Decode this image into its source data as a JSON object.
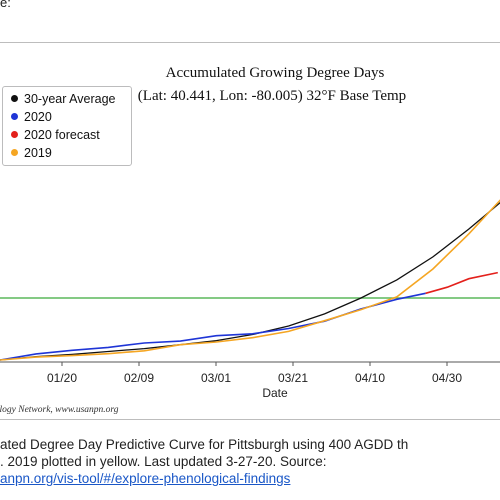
{
  "page": {
    "top_fragment": "e:",
    "caption_lines": [
      "ated Degree Day Predictive Curve for Pittsburgh using 400 AGDD th",
      ". 2019 plotted in yellow. Last updated 3-27-20. Source:"
    ],
    "caption_link": "anpn.org/vis-tool/#/explore-phenological-findings"
  },
  "chart_data": {
    "type": "line",
    "title": "Accumulated Growing Degree Days",
    "subtitle": "(Lat: 40.441, Lon: -80.005) 32°F Base Temp",
    "xlabel": "Date",
    "ylabel": "",
    "x_ticks": [
      "01/20",
      "02/09",
      "03/01",
      "03/21",
      "04/10",
      "04/30"
    ],
    "threshold_line": {
      "color": "#5cb85c"
    },
    "credit": "nology Network, www.usanpn.org",
    "legend_position": "top-left",
    "colors": {
      "30-year Average": "#111111",
      "2020": "#1f35d6",
      "2020 forecast": "#e3201b",
      "2019": "#f5a623",
      "threshold": "#5cb85c"
    },
    "series": [
      {
        "name": "30-year Average",
        "color": "#111111",
        "x": [
          0,
          10,
          20,
          30,
          40,
          50,
          60,
          70,
          80,
          90,
          100,
          110,
          120,
          130,
          140
        ],
        "y": [
          0,
          14,
          23,
          35,
          47,
          63,
          80,
          105,
          140,
          190,
          255,
          330,
          425,
          540,
          665
        ]
      },
      {
        "name": "2020",
        "color": "#1f35d6",
        "x": [
          0,
          10,
          20,
          30,
          40,
          50,
          60,
          70,
          80,
          90,
          100,
          110,
          118
        ],
        "y": [
          0,
          25,
          40,
          52,
          70,
          78,
          100,
          108,
          130,
          160,
          210,
          250,
          275
        ]
      },
      {
        "name": "2020 forecast",
        "color": "#e3201b",
        "x": [
          118,
          124,
          130,
          138
        ],
        "y": [
          275,
          300,
          335,
          360
        ]
      },
      {
        "name": "2019",
        "color": "#f5a623",
        "x": [
          0,
          10,
          20,
          30,
          40,
          50,
          60,
          70,
          80,
          90,
          100,
          110,
          120,
          130,
          140
        ],
        "y": [
          0,
          12,
          18,
          26,
          38,
          63,
          74,
          92,
          118,
          162,
          207,
          260,
          375,
          520,
          680
        ]
      }
    ]
  }
}
